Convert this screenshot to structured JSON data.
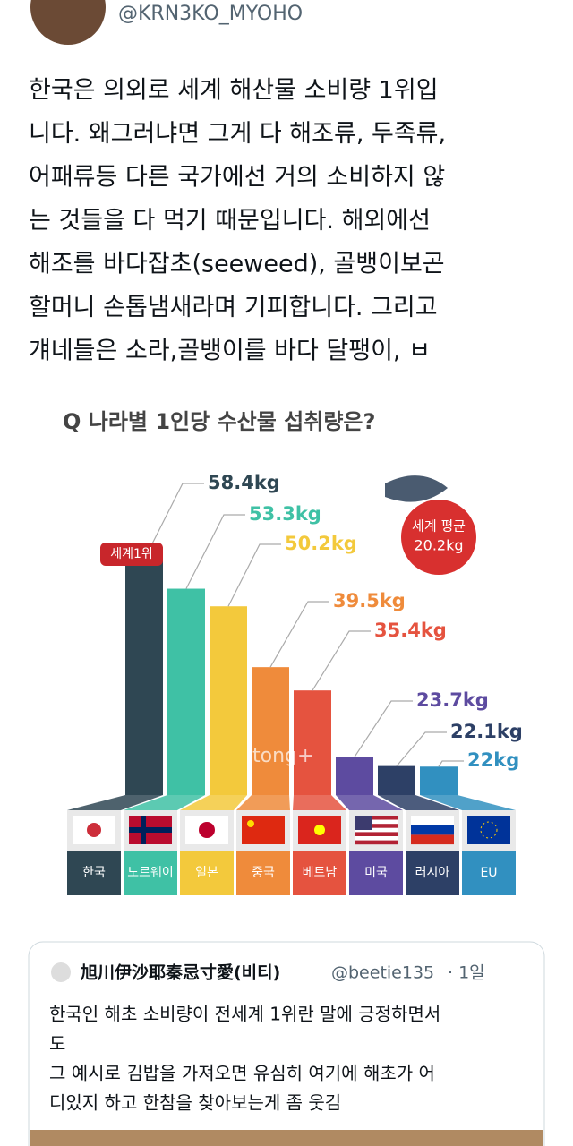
{
  "tweet": {
    "handle": "@KRN3KO_MYOHO",
    "lines": [
      "한국은 의외로 세계 해산물 소비량 1위입",
      "니다. 왜그러냐면 그게 다 해조류, 두족류,",
      "어패류등 다른 국가에선 거의 소비하지 않",
      "는 것들을 다 먹기 때문입니다. 해외에선",
      "해조를 바다잡초(seeweed), 골뱅이보곤",
      "할머니 손톱냄새라며 기피합니다. 그리고",
      "걔네들은 소라,골뱅이를 바다 달팽이, ㅂ"
    ]
  },
  "chart_data": {
    "type": "bar",
    "title": "Q 나라별 1인당 수산물 섭취량은?",
    "categories": [
      "한국",
      "노르웨이",
      "일본",
      "중국",
      "베트남",
      "미국",
      "러시아",
      "EU"
    ],
    "values": [
      58.4,
      53.3,
      50.2,
      39.5,
      35.4,
      23.7,
      22.1,
      22
    ],
    "value_labels": [
      "58.4kg",
      "53.3kg",
      "50.2kg",
      "39.5kg",
      "35.4kg",
      "23.7kg",
      "22.1kg",
      "22kg"
    ],
    "colors": [
      "#2f4753",
      "#3fc1a5",
      "#f3c93c",
      "#ef8b3b",
      "#e5533f",
      "#5d4ba0",
      "#2d4066",
      "#3190c0"
    ],
    "ylim": [
      17,
      60
    ],
    "badge": "세계1위",
    "world_average": {
      "label": "세계 평균",
      "text": "20.2kg"
    },
    "watermark": "tong+"
  },
  "quote": {
    "name": "旭川伊沙耶秦忌寸愛(비티)",
    "handle": "@beetie135",
    "time": "· 1일",
    "lines": [
      "한국인 해초 소비량이 전세계 1위란 말에 긍정하면서",
      "도",
      "그 예시로 김밥을 가져오면 유심히 여기에 해초가 어",
      "디있지 하고 한참을 찾아보는게 좀 웃김"
    ]
  }
}
